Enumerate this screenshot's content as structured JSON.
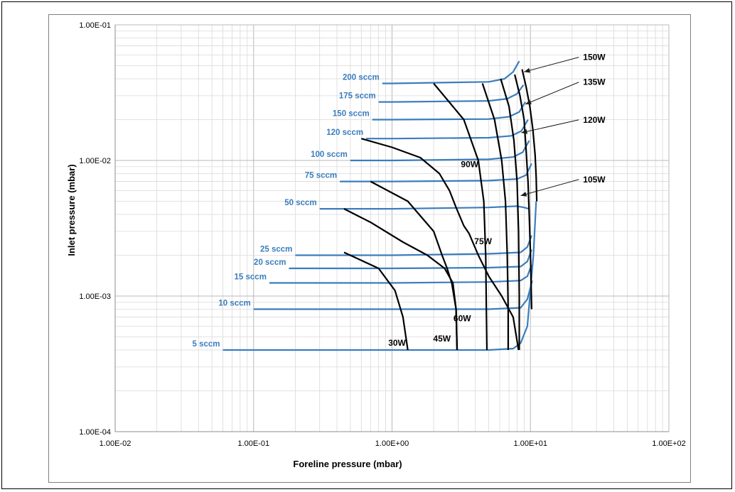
{
  "chart_data": {
    "type": "line",
    "xlabel": "Foreline pressure (mbar)",
    "ylabel": "Inlet pressure (mbar)",
    "x_scale": "log",
    "y_scale": "log",
    "xlim": [
      0.01,
      100
    ],
    "ylim": [
      0.0001,
      0.1
    ],
    "x_ticks": [
      "1.00E-02",
      "1.00E-01",
      "1.00E+00",
      "1.00E+01",
      "1.00E+02"
    ],
    "y_ticks": [
      "1.00E-04",
      "1.00E-03",
      "1.00E-02",
      "1.00E-01"
    ],
    "grid": "major and minor",
    "colors": {
      "flow": "#3b7dbe",
      "power": "#000000",
      "annotation": "#1a1a1a"
    },
    "flow_series": [
      {
        "name": "5 sccm",
        "points": [
          [
            0.06,
            0.0004
          ],
          [
            1,
            0.0004
          ],
          [
            5,
            0.0004
          ],
          [
            7.5,
            0.00041
          ],
          [
            8.5,
            0.00045
          ],
          [
            9.5,
            0.0006
          ],
          [
            10.5,
            0.002
          ],
          [
            11,
            0.005
          ]
        ]
      },
      {
        "name": "10 sccm",
        "points": [
          [
            0.1,
            0.0008
          ],
          [
            1,
            0.0008
          ],
          [
            5,
            0.0008
          ],
          [
            8.5,
            0.00082
          ],
          [
            9.5,
            0.00095
          ],
          [
            10.3,
            0.0013
          ]
        ]
      },
      {
        "name": "15 sccm",
        "points": [
          [
            0.13,
            0.00125
          ],
          [
            1,
            0.00125
          ],
          [
            5,
            0.00127
          ],
          [
            8.5,
            0.0013
          ],
          [
            9.5,
            0.0014
          ],
          [
            10.2,
            0.0017
          ]
        ]
      },
      {
        "name": "20 sccm",
        "points": [
          [
            0.18,
            0.0016
          ],
          [
            1,
            0.0016
          ],
          [
            5,
            0.00162
          ],
          [
            8.5,
            0.00165
          ],
          [
            9.5,
            0.0018
          ],
          [
            10.2,
            0.0022
          ]
        ]
      },
      {
        "name": "25 sccm",
        "points": [
          [
            0.2,
            0.002
          ],
          [
            1,
            0.002
          ],
          [
            5,
            0.00205
          ],
          [
            8.5,
            0.0021
          ],
          [
            9.5,
            0.0023
          ],
          [
            10.2,
            0.0028
          ]
        ]
      },
      {
        "name": "50 sccm",
        "points": [
          [
            0.3,
            0.0044
          ],
          [
            1,
            0.0044
          ],
          [
            5,
            0.0045
          ],
          [
            8,
            0.0046
          ],
          [
            9,
            0.0045
          ],
          [
            9.7,
            0.0044
          ]
        ]
      },
      {
        "name": "75 sccm",
        "points": [
          [
            0.42,
            0.007
          ],
          [
            1,
            0.007
          ],
          [
            5,
            0.0071
          ],
          [
            8,
            0.0073
          ],
          [
            9.3,
            0.0078
          ],
          [
            10.2,
            0.0095
          ]
        ]
      },
      {
        "name": "100 sccm",
        "points": [
          [
            0.5,
            0.01
          ],
          [
            1,
            0.01
          ],
          [
            5,
            0.0102
          ],
          [
            7.5,
            0.0106
          ],
          [
            8.8,
            0.0115
          ],
          [
            9.8,
            0.014
          ]
        ]
      },
      {
        "name": "120 sccm",
        "points": [
          [
            0.65,
            0.0145
          ],
          [
            1,
            0.0145
          ],
          [
            5,
            0.0147
          ],
          [
            7.3,
            0.0152
          ],
          [
            8.6,
            0.0165
          ],
          [
            9.6,
            0.02
          ]
        ]
      },
      {
        "name": "150 sccm",
        "points": [
          [
            0.72,
            0.02
          ],
          [
            1,
            0.02
          ],
          [
            5,
            0.0202
          ],
          [
            7,
            0.021
          ],
          [
            8.3,
            0.0228
          ],
          [
            9.2,
            0.027
          ]
        ]
      },
      {
        "name": "175 sccm",
        "points": [
          [
            0.8,
            0.027
          ],
          [
            1,
            0.027
          ],
          [
            5,
            0.0275
          ],
          [
            6.8,
            0.0285
          ],
          [
            8,
            0.031
          ],
          [
            8.9,
            0.036
          ]
        ]
      },
      {
        "name": "200 sccm",
        "points": [
          [
            0.85,
            0.037
          ],
          [
            1,
            0.037
          ],
          [
            5,
            0.038
          ],
          [
            6.5,
            0.04
          ],
          [
            7.5,
            0.045
          ],
          [
            8.3,
            0.054
          ]
        ]
      }
    ],
    "power_series": [
      {
        "name": "30W",
        "points": [
          [
            0.6,
            0.0145
          ],
          [
            1,
            0.0125
          ],
          [
            1.6,
            0.0105
          ],
          [
            2.2,
            0.008
          ],
          [
            2.6,
            0.006
          ],
          [
            2.9,
            0.0045
          ],
          [
            3.3,
            0.0033
          ],
          [
            3.6,
            0.0029
          ],
          [
            4.2,
            0.002
          ],
          [
            5,
            0.0014
          ],
          [
            6.2,
            0.001
          ],
          [
            7.5,
            0.0007
          ],
          [
            8.2,
            0.0004
          ]
        ]
      },
      {
        "name": "45W",
        "points": [
          [
            0.45,
            0.0044
          ],
          [
            0.7,
            0.0035
          ],
          [
            1.2,
            0.0025
          ],
          [
            1.8,
            0.002
          ],
          [
            2.4,
            0.0016
          ],
          [
            2.75,
            0.00125
          ],
          [
            2.9,
            0.0008
          ],
          [
            2.95,
            0.0004
          ]
        ]
      },
      {
        "name": "60W",
        "points": [
          [
            0.7,
            0.007
          ],
          [
            1.3,
            0.005
          ],
          [
            2,
            0.003
          ],
          [
            2.3,
            0.002
          ],
          [
            2.5,
            0.0016
          ],
          [
            2.7,
            0.00125
          ],
          [
            2.9,
            0.0008
          ],
          [
            2.95,
            0.0004
          ]
        ]
      },
      {
        "name": "75W",
        "points": [
          [
            0.45,
            0.0021
          ],
          [
            0.8,
            0.0016
          ],
          [
            1.05,
            0.0011
          ],
          [
            1.2,
            0.0007
          ],
          [
            1.3,
            0.0004
          ]
        ]
      },
      {
        "name": "90W",
        "points": [
          [
            2,
            0.037
          ],
          [
            3.3,
            0.02
          ],
          [
            4.2,
            0.01
          ],
          [
            4.6,
            0.005
          ],
          [
            4.75,
            0.002
          ],
          [
            4.8,
            0.0008
          ],
          [
            4.85,
            0.0004
          ]
        ]
      },
      {
        "name": "105W",
        "points": [
          [
            4.5,
            0.037
          ],
          [
            5.5,
            0.02
          ],
          [
            6.2,
            0.01
          ],
          [
            6.6,
            0.005
          ],
          [
            6.8,
            0.002
          ],
          [
            6.9,
            0.0008
          ],
          [
            6.9,
            0.0004
          ]
        ]
      },
      {
        "name": "120W",
        "points": [
          [
            6.1,
            0.04
          ],
          [
            7,
            0.025
          ],
          [
            7.6,
            0.014
          ],
          [
            8,
            0.007
          ],
          [
            8.2,
            0.003
          ],
          [
            8.3,
            0.001
          ],
          [
            8.3,
            0.0004
          ]
        ]
      },
      {
        "name": "135W",
        "points": [
          [
            7.7,
            0.043
          ],
          [
            8.4,
            0.03
          ],
          [
            9,
            0.02
          ],
          [
            9.3,
            0.012
          ],
          [
            9.6,
            0.007
          ],
          [
            9.8,
            0.004
          ],
          [
            10,
            0.002
          ],
          [
            10.2,
            0.0008
          ]
        ]
      },
      {
        "name": "150W",
        "points": [
          [
            8.7,
            0.047
          ],
          [
            9.3,
            0.035
          ],
          [
            9.9,
            0.025
          ],
          [
            10.4,
            0.017
          ],
          [
            10.8,
            0.011
          ],
          [
            11,
            0.0075
          ],
          [
            11.1,
            0.005
          ]
        ]
      }
    ],
    "flow_labels": [
      "5 sccm",
      "10 sccm",
      "15 sccm",
      "20 sccm",
      "25 sccm",
      "50 sccm",
      "75 sccm",
      "100 sccm",
      "120 sccm",
      "150 sccm",
      "175 sccm",
      "200 sccm"
    ],
    "power_labels": [
      "30W",
      "45W",
      "60W",
      "75W",
      "90W"
    ],
    "callouts": [
      "150W",
      "135W",
      "120W",
      "105W"
    ]
  }
}
